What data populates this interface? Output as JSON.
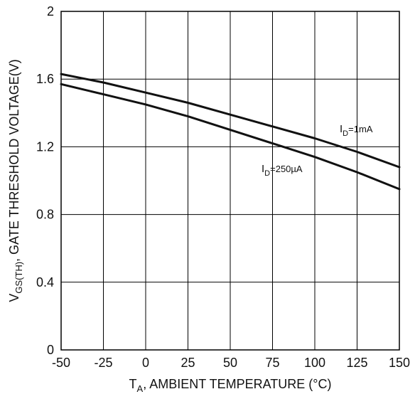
{
  "chart_data": {
    "type": "line",
    "xlabel": {
      "main": "T",
      "sub": "A",
      "rest": ", AMBIENT TEMPERATURE (°C)"
    },
    "ylabel": {
      "main": "V",
      "sub": "GS(TH)",
      "rest": ", GATE THRESHOLD VOLTAGE(V)"
    },
    "xlim": [
      -50,
      150
    ],
    "ylim": [
      0,
      2
    ],
    "xticks": [
      -50,
      -25,
      0,
      25,
      50,
      75,
      100,
      125,
      150
    ],
    "yticks": [
      0,
      0.4,
      0.8,
      1.2,
      1.6,
      2
    ],
    "ytick_labels": [
      "0",
      "0.4",
      "0.8",
      "1.2",
      "1.6",
      "2"
    ],
    "grid": true,
    "series": [
      {
        "name": {
          "main": "I",
          "sub": "D",
          "rest": "=1mA"
        },
        "x": [
          -50,
          -25,
          0,
          25,
          50,
          75,
          100,
          125,
          150
        ],
        "y": [
          1.63,
          1.58,
          1.52,
          1.46,
          1.39,
          1.32,
          1.25,
          1.17,
          1.08
        ]
      },
      {
        "name": {
          "main": "I",
          "sub": "D",
          "rest": "=250µA"
        },
        "x": [
          -50,
          -25,
          0,
          25,
          50,
          75,
          100,
          125,
          150
        ],
        "y": [
          1.57,
          1.51,
          1.45,
          1.38,
          1.3,
          1.22,
          1.14,
          1.05,
          0.95
        ]
      }
    ]
  }
}
